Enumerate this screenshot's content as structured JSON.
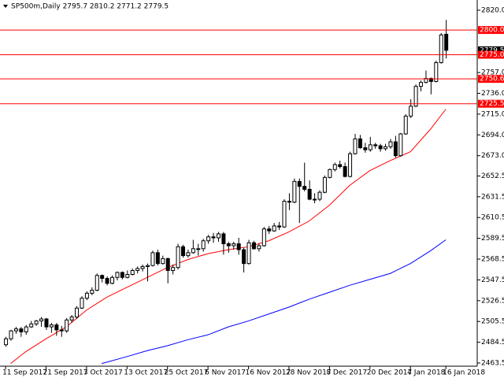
{
  "chart_data": {
    "type": "candlestick",
    "title": "SP500m,Daily  2795.7 2810.2 2771.2 2779.5",
    "categories": [
      "11 Sep 2017",
      null,
      null,
      null,
      null,
      null,
      null,
      null,
      "21 Sep 2017",
      null,
      null,
      null,
      null,
      null,
      null,
      null,
      "3 Oct 2017",
      null,
      null,
      null,
      null,
      null,
      null,
      null,
      "13 Oct 2017",
      null,
      null,
      null,
      null,
      null,
      null,
      null,
      "25 Oct 2017",
      null,
      null,
      null,
      null,
      null,
      null,
      null,
      "6 Nov 2017",
      null,
      null,
      null,
      null,
      null,
      null,
      null,
      "16 Nov 2017",
      null,
      null,
      null,
      null,
      null,
      null,
      null,
      "28 Nov 2017",
      null,
      null,
      null,
      null,
      null,
      null,
      null,
      "8 Dec 2017",
      null,
      null,
      null,
      null,
      null,
      null,
      null,
      "20 Dec 2017",
      null,
      null,
      null,
      null,
      null,
      null,
      null,
      "4 Jan 2018",
      null,
      null,
      null,
      null,
      null,
      null,
      "16 Jan 2018"
    ],
    "candles": [
      [
        2482,
        2490,
        2480,
        2488
      ],
      [
        2488,
        2497,
        2486,
        2496
      ],
      [
        2496,
        2500,
        2493,
        2498
      ],
      [
        2498,
        2500,
        2490,
        2495
      ],
      [
        2495,
        2502,
        2492,
        2500
      ],
      [
        2500,
        2506,
        2499,
        2503
      ],
      [
        2503,
        2507,
        2501,
        2506
      ],
      [
        2506,
        2510,
        2500,
        2508
      ],
      [
        2508,
        2509,
        2497,
        2500
      ],
      [
        2500,
        2504,
        2494,
        2502
      ],
      [
        2502,
        2504,
        2491,
        2497
      ],
      [
        2497,
        2501,
        2490,
        2496
      ],
      [
        2496,
        2509,
        2494,
        2507
      ],
      [
        2507,
        2512,
        2504,
        2510
      ],
      [
        2510,
        2521,
        2508,
        2519
      ],
      [
        2519,
        2531,
        2518,
        2529
      ],
      [
        2529,
        2536,
        2527,
        2534
      ],
      [
        2534,
        2540,
        2532,
        2537
      ],
      [
        2537,
        2554,
        2536,
        2552
      ],
      [
        2552,
        2553,
        2545,
        2549
      ],
      [
        2549,
        2551,
        2542,
        2544
      ],
      [
        2544,
        2552,
        2543,
        2550
      ],
      [
        2550,
        2556,
        2547,
        2555
      ],
      [
        2555,
        2556,
        2548,
        2550
      ],
      [
        2550,
        2557,
        2549,
        2553
      ],
      [
        2553,
        2559,
        2552,
        2557
      ],
      [
        2557,
        2561,
        2554,
        2559
      ],
      [
        2559,
        2563,
        2556,
        2561
      ],
      [
        2561,
        2564,
        2546,
        2562
      ],
      [
        2562,
        2577,
        2561,
        2575
      ],
      [
        2575,
        2578,
        2562,
        2564
      ],
      [
        2564,
        2572,
        2563,
        2569
      ],
      [
        2569,
        2570,
        2544,
        2557
      ],
      [
        2557,
        2563,
        2553,
        2560
      ],
      [
        2560,
        2584,
        2558,
        2581
      ],
      [
        2581,
        2583,
        2570,
        2572
      ],
      [
        2572,
        2578,
        2570,
        2575
      ],
      [
        2575,
        2588,
        2574,
        2579
      ],
      [
        2579,
        2584,
        2572,
        2579
      ],
      [
        2579,
        2589,
        2576,
        2587
      ],
      [
        2587,
        2593,
        2584,
        2591
      ],
      [
        2591,
        2595,
        2585,
        2590
      ],
      [
        2590,
        2596,
        2586,
        2594
      ],
      [
        2594,
        2596,
        2573,
        2584
      ],
      [
        2584,
        2586,
        2575,
        2582
      ],
      [
        2582,
        2586,
        2578,
        2584
      ],
      [
        2584,
        2590,
        2573,
        2578
      ],
      [
        2578,
        2580,
        2555,
        2564
      ],
      [
        2564,
        2588,
        2563,
        2585
      ],
      [
        2585,
        2587,
        2578,
        2579
      ],
      [
        2579,
        2584,
        2576,
        2582
      ],
      [
        2582,
        2601,
        2581,
        2599
      ],
      [
        2599,
        2602,
        2594,
        2597
      ],
      [
        2597,
        2605,
        2596,
        2602
      ],
      [
        2602,
        2606,
        2598,
        2601
      ],
      [
        2601,
        2629,
        2600,
        2627
      ],
      [
        2627,
        2635,
        2618,
        2626
      ],
      [
        2626,
        2650,
        2625,
        2647
      ],
      [
        2647,
        2650,
        2605,
        2642
      ],
      [
        2642,
        2666,
        2637,
        2639
      ],
      [
        2639,
        2648,
        2628,
        2629
      ],
      [
        2629,
        2635,
        2625,
        2629
      ],
      [
        2629,
        2638,
        2627,
        2636
      ],
      [
        2636,
        2653,
        2635,
        2651
      ],
      [
        2651,
        2660,
        2650,
        2659
      ],
      [
        2659,
        2666,
        2657,
        2664
      ],
      [
        2664,
        2668,
        2660,
        2662
      ],
      [
        2662,
        2666,
        2651,
        2652
      ],
      [
        2652,
        2677,
        2651,
        2675
      ],
      [
        2675,
        2695,
        2674,
        2690
      ],
      [
        2690,
        2694,
        2680,
        2681
      ],
      [
        2681,
        2686,
        2676,
        2679
      ],
      [
        2679,
        2692,
        2677,
        2684
      ],
      [
        2684,
        2686,
        2680,
        2683
      ],
      [
        2683,
        2685,
        2677,
        2680
      ],
      [
        2680,
        2685,
        2678,
        2682
      ],
      [
        2682,
        2690,
        2680,
        2687
      ],
      [
        2687,
        2693,
        2671,
        2673
      ],
      [
        2673,
        2696,
        2672,
        2695
      ],
      [
        2695,
        2715,
        2694,
        2713
      ],
      [
        2713,
        2730,
        2711,
        2723
      ],
      [
        2723,
        2745,
        2722,
        2743
      ],
      [
        2743,
        2749,
        2738,
        2747
      ],
      [
        2747,
        2759,
        2746,
        2751
      ],
      [
        2751,
        2752,
        2735,
        2748
      ],
      [
        2748,
        2769,
        2747,
        2767
      ],
      [
        2767,
        2797,
        2766,
        2795
      ],
      [
        2795.7,
        2810.2,
        2771.2,
        2779.5
      ]
    ],
    "series": [
      {
        "color": "#ff0000",
        "x": [
          1,
          4,
          8,
          12,
          16,
          20,
          24,
          28,
          32,
          36,
          40,
          44,
          48,
          52,
          56,
          60,
          64,
          68,
          72,
          76,
          80,
          84,
          87
        ],
        "values": [
          2463,
          2475,
          2488,
          2500,
          2517,
          2530,
          2540,
          2550,
          2560,
          2568,
          2574,
          2578,
          2581,
          2587,
          2596,
          2607,
          2623,
          2643,
          2658,
          2668,
          2677,
          2700,
          2720
        ]
      },
      {
        "color": "#0000ff",
        "x": [
          19,
          24,
          28,
          32,
          36,
          40,
          44,
          48,
          52,
          56,
          60,
          64,
          68,
          72,
          76,
          80,
          84,
          87
        ],
        "values": [
          2463,
          2470,
          2476,
          2481,
          2487,
          2492,
          2500,
          2506,
          2513,
          2520,
          2528,
          2535,
          2542,
          2548,
          2554,
          2564,
          2577,
          2588
        ]
      }
    ],
    "levels": [
      {
        "value": 2800,
        "label": "2800.0"
      },
      {
        "value": 2775,
        "label": "2775.0"
      },
      {
        "value": 2750.6,
        "label": "2750.6"
      },
      {
        "value": 2725.5,
        "label": "2725.5"
      }
    ],
    "level_color": "#ff0000",
    "xlim": [
      -1.1,
      93.2
    ],
    "ylim": [
      2460.3,
      2830.3
    ],
    "yticks": [
      {
        "value": 2820,
        "label": "2820.0"
      },
      {
        "value": 2757,
        "label": "2757.0"
      },
      {
        "value": 2736,
        "label": "2736.0"
      },
      {
        "value": 2715,
        "label": "2715.0"
      },
      {
        "value": 2694,
        "label": "2694.0"
      },
      {
        "value": 2673,
        "label": "2673.0"
      },
      2652.5,
      2631.5,
      2610.5,
      2589.5,
      2568.5,
      2547.5,
      2526.5,
      2505.5,
      2484.5,
      2463.5
    ]
  }
}
